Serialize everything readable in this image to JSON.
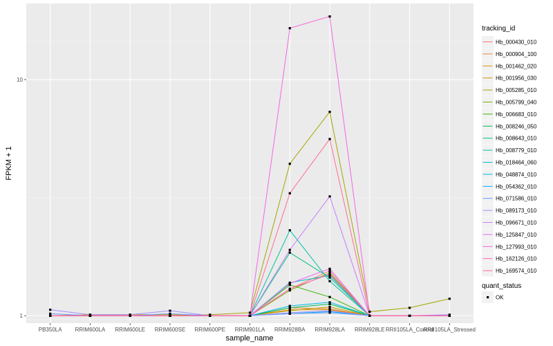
{
  "chart_data": {
    "type": "line",
    "xlabel": "sample_name",
    "ylabel": "FPKM + 1",
    "y_scale": "log10",
    "ylim": [
      0.93,
      21
    ],
    "y_ticks": [
      1,
      10
    ],
    "y_tick_labels": [
      "1",
      "10"
    ],
    "grid": true,
    "legend_position": "right",
    "categories": [
      "PB350LA",
      "RRIM600LA",
      "RRIM600LE",
      "RRIM600SE",
      "RRIM600PE",
      "RRIM901LA",
      "RRIM928BA",
      "RRIM928LA",
      "RRIM928LE",
      "RRII105LA_Control",
      "RRII105LA_Stressed"
    ],
    "color_legend_title": "tracking_id",
    "series": [
      {
        "name": "Hb_000430_010",
        "color": "#F8766D",
        "values": [
          1,
          1,
          1,
          1,
          1,
          1,
          1.3,
          1.55,
          1,
          1,
          1
        ]
      },
      {
        "name": "Hb_000904_100",
        "color": "#EA8331",
        "values": [
          1,
          1,
          1,
          1,
          1,
          1,
          1.08,
          1.07,
          1,
          1,
          1
        ]
      },
      {
        "name": "Hb_001462_020",
        "color": "#D89000",
        "values": [
          1,
          1,
          1,
          1,
          1,
          1,
          1.06,
          1.06,
          1,
          1,
          1
        ]
      },
      {
        "name": "Hb_001956_030",
        "color": "#C09B00",
        "values": [
          1,
          1.01,
          1.01,
          1.01,
          1,
          1,
          1.05,
          1.09,
          1,
          1,
          1
        ]
      },
      {
        "name": "Hb_005285_010",
        "color": "#A3A500",
        "values": [
          1,
          1,
          1,
          1,
          1.01,
          1.03,
          4.4,
          7.3,
          1.04,
          1.08,
          1.18
        ]
      },
      {
        "name": "Hb_005799_040",
        "color": "#7CAE00",
        "values": [
          1,
          1,
          1,
          1,
          1,
          1,
          1.28,
          1.52,
          1,
          1,
          1
        ]
      },
      {
        "name": "Hb_006683_010",
        "color": "#39B600",
        "values": [
          1,
          1,
          1,
          1,
          1,
          1,
          1.35,
          1.2,
          1,
          1,
          1
        ]
      },
      {
        "name": "Hb_008246_050",
        "color": "#00BB4E",
        "values": [
          1,
          1,
          1,
          1,
          1,
          1,
          1.08,
          1.12,
          1,
          1,
          1
        ]
      },
      {
        "name": "Hb_008643_010",
        "color": "#00BF7D",
        "values": [
          1,
          1,
          1,
          1,
          1,
          1,
          1.85,
          1.45,
          1,
          1,
          1
        ]
      },
      {
        "name": "Hb_008779_010",
        "color": "#00C1A3",
        "values": [
          1,
          1,
          1,
          1,
          1,
          1,
          2.3,
          1.4,
          1,
          1,
          1
        ]
      },
      {
        "name": "Hb_018464_060",
        "color": "#00BFC4",
        "values": [
          1,
          1,
          1,
          1,
          1,
          1,
          1.38,
          1.48,
          1,
          1,
          1
        ]
      },
      {
        "name": "Hb_048874_010",
        "color": "#00B8E7",
        "values": [
          1,
          1,
          1,
          1,
          1,
          1,
          1.1,
          1.14,
          1,
          1,
          1
        ]
      },
      {
        "name": "Hb_054362_010",
        "color": "#00A9FF",
        "values": [
          1,
          1,
          1,
          1,
          1,
          1,
          1.02,
          1.04,
          1,
          1,
          1
        ]
      },
      {
        "name": "Hb_071586_010",
        "color": "#619CFF",
        "values": [
          1.02,
          1,
          1,
          1.02,
          1,
          1,
          1.02,
          1.03,
          1,
          1,
          1
        ]
      },
      {
        "name": "Hb_089173_010",
        "color": "#9F8CFF",
        "values": [
          1.06,
          1.01,
          1.01,
          1.05,
          1,
          1,
          1.03,
          1.05,
          1,
          1,
          1.01
        ]
      },
      {
        "name": "Hb_096671_010",
        "color": "#C77CFF",
        "values": [
          1,
          1,
          1,
          1,
          1,
          1,
          1.9,
          3.2,
          1,
          1,
          1
        ]
      },
      {
        "name": "Hb_125847_010",
        "color": "#E76BF3",
        "values": [
          1,
          1,
          1,
          1,
          1,
          1,
          1.37,
          1.58,
          1,
          1,
          1
        ]
      },
      {
        "name": "Hb_127993_010",
        "color": "#F564E3",
        "values": [
          1,
          1,
          1,
          1,
          1,
          1,
          16.5,
          18.5,
          1,
          1,
          1
        ]
      },
      {
        "name": "Hb_162126_010",
        "color": "#FF62BC",
        "values": [
          1,
          1,
          1,
          1,
          1,
          1,
          1.3,
          1.5,
          1,
          1,
          1
        ]
      },
      {
        "name": "Hb_169574_010",
        "color": "#FF6C91",
        "values": [
          1,
          1,
          1,
          1,
          1,
          1,
          3.3,
          5.6,
          1,
          1,
          1
        ]
      }
    ],
    "shape_legend_title": "quant_status",
    "shape_legend_items": [
      {
        "label": "OK",
        "shape": "square",
        "color": "#000000"
      }
    ]
  }
}
